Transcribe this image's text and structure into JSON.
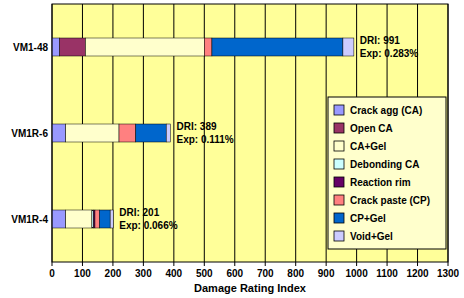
{
  "chart_data": {
    "type": "bar",
    "orientation": "horizontal",
    "stacked": true,
    "grid": true,
    "legend": "right",
    "xlabel": "Damage Rating Index",
    "categories": [
      "VM1-48",
      "VM1R-6",
      "VM1R-4"
    ],
    "xlim": [
      0,
      1300
    ],
    "xticks": [
      0,
      100,
      200,
      300,
      400,
      500,
      600,
      700,
      800,
      900,
      1000,
      1100,
      1200,
      1300
    ],
    "series": [
      {
        "name": "Crack agg (CA)",
        "color": "#9999ff",
        "values": [
          25,
          45,
          45
        ]
      },
      {
        "name": "Open CA",
        "color": "#993366",
        "values": [
          85,
          0,
          0
        ]
      },
      {
        "name": "CA+Gel",
        "color": "#ffffcc",
        "values": [
          390,
          175,
          86
        ]
      },
      {
        "name": "Debonding CA",
        "color": "#ccffff",
        "values": [
          0,
          0,
          5
        ]
      },
      {
        "name": "Reaction rim",
        "color": "#660066",
        "values": [
          0,
          0,
          5
        ]
      },
      {
        "name": "Crack paste (CP)",
        "color": "#ff8080",
        "values": [
          25,
          55,
          15
        ]
      },
      {
        "name": "CP+Gel",
        "color": "#0066cc",
        "values": [
          430,
          100,
          35
        ]
      },
      {
        "name": "Void+Gel",
        "color": "#ccccff",
        "values": [
          36,
          14,
          10
        ]
      }
    ],
    "annotations": [
      [
        "DRI: 991",
        "Exp: 0.283%"
      ],
      [
        "DRI: 389",
        "Exp: 0.111%"
      ],
      [
        "DRI: 201",
        "Exp: 0.066%"
      ]
    ]
  }
}
